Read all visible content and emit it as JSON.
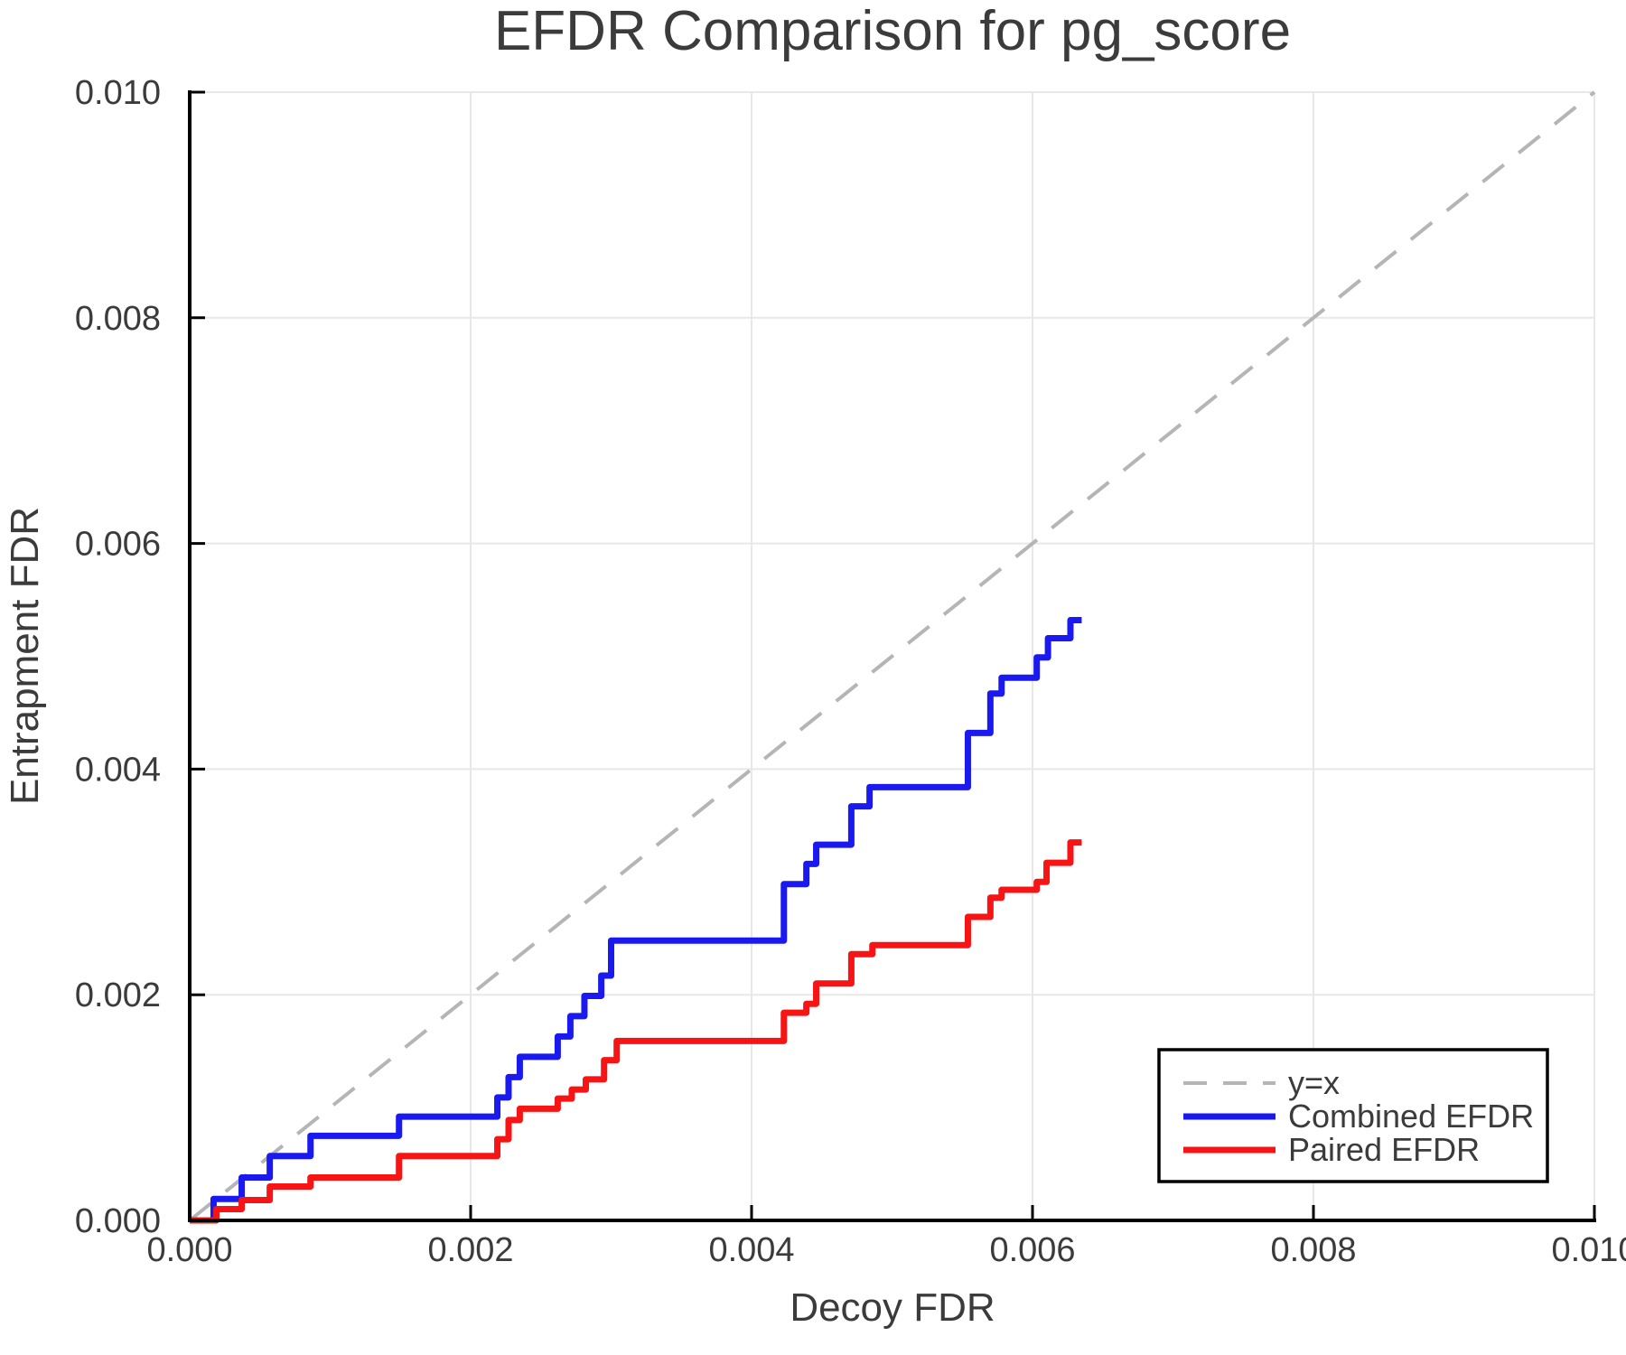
{
  "chart_data": {
    "type": "line",
    "title": "EFDR Comparison for pg_score",
    "xlabel": "Decoy FDR",
    "ylabel": "Entrapment FDR",
    "xlim": [
      0.0,
      0.01
    ],
    "ylim": [
      0.0,
      0.01
    ],
    "grid": true,
    "legend_position": "lower right",
    "xticks": {
      "values": [
        0.0,
        0.002,
        0.004,
        0.006,
        0.008,
        0.01
      ],
      "labels": [
        "0.000",
        "0.002",
        "0.004",
        "0.006",
        "0.008",
        "0.010"
      ]
    },
    "yticks": {
      "values": [
        0.0,
        0.002,
        0.004,
        0.006,
        0.008,
        0.01
      ],
      "labels": [
        "0.000",
        "0.002",
        "0.004",
        "0.006",
        "0.008",
        "0.010"
      ]
    },
    "series": [
      {
        "name": "y=x",
        "color": "#b5b5b5",
        "style": "dashed",
        "step": false,
        "points": [
          [
            0.0,
            0.0
          ],
          [
            0.01,
            0.01
          ]
        ]
      },
      {
        "name": "Combined EFDR",
        "color": "#1a1af0",
        "style": "solid",
        "step": true,
        "points": [
          [
            0.0,
            0.0
          ],
          [
            0.00017,
            0.00019
          ],
          [
            0.00037,
            0.00038
          ],
          [
            0.00057,
            0.00057
          ],
          [
            0.00086,
            0.00075
          ],
          [
            0.00149,
            0.00092
          ],
          [
            0.00219,
            0.00109
          ],
          [
            0.00227,
            0.00127
          ],
          [
            0.00235,
            0.00145
          ],
          [
            0.00262,
            0.00163
          ],
          [
            0.00271,
            0.00181
          ],
          [
            0.00281,
            0.00199
          ],
          [
            0.00293,
            0.00217
          ],
          [
            0.003,
            0.00248
          ],
          [
            0.00423,
            0.00298
          ],
          [
            0.00439,
            0.00316
          ],
          [
            0.00446,
            0.00333
          ],
          [
            0.00471,
            0.00367
          ],
          [
            0.00484,
            0.00384
          ],
          [
            0.00554,
            0.00432
          ],
          [
            0.0057,
            0.00467
          ],
          [
            0.00578,
            0.00481
          ],
          [
            0.00603,
            0.00499
          ],
          [
            0.00611,
            0.00516
          ],
          [
            0.00627,
            0.00532
          ],
          [
            0.00635,
            0.00532
          ]
        ]
      },
      {
        "name": "Paired EFDR",
        "color": "#f71414",
        "style": "solid",
        "step": true,
        "points": [
          [
            0.0,
            0.0
          ],
          [
            0.00019,
            0.0001
          ],
          [
            0.00037,
            0.00018
          ],
          [
            0.00057,
            0.0003
          ],
          [
            0.00086,
            0.00038
          ],
          [
            0.00149,
            0.00057
          ],
          [
            0.00219,
            0.00072
          ],
          [
            0.00227,
            0.00089
          ],
          [
            0.00235,
            0.00099
          ],
          [
            0.00262,
            0.00108
          ],
          [
            0.00272,
            0.00116
          ],
          [
            0.00282,
            0.00125
          ],
          [
            0.00295,
            0.00142
          ],
          [
            0.00304,
            0.00159
          ],
          [
            0.00423,
            0.00184
          ],
          [
            0.00439,
            0.00192
          ],
          [
            0.00446,
            0.0021
          ],
          [
            0.00471,
            0.00236
          ],
          [
            0.00486,
            0.00244
          ],
          [
            0.00554,
            0.00269
          ],
          [
            0.0057,
            0.00286
          ],
          [
            0.00578,
            0.00293
          ],
          [
            0.00603,
            0.003
          ],
          [
            0.0061,
            0.00317
          ],
          [
            0.00627,
            0.00335
          ],
          [
            0.00635,
            0.00335
          ]
        ]
      }
    ]
  }
}
